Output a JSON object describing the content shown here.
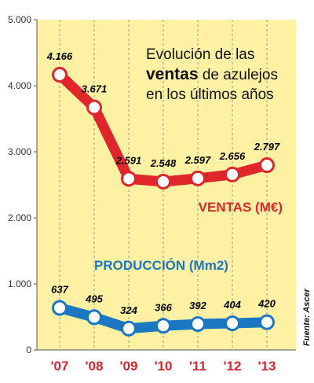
{
  "colors": {
    "background": "#fef1a4",
    "ventas": "#e0262b",
    "produccion": "#1c77c3",
    "gridline": "#9b9b9b",
    "category_labels": "#d7262e"
  },
  "title": {
    "line1": "Evolución de las",
    "line2_bold": "ventas",
    "line2_rest": " de azulejos",
    "line3": "en los últimos años"
  },
  "source": "Fuente: Ascer",
  "chart_data": {
    "type": "line",
    "categories": [
      "'07",
      "'08",
      "'09",
      "'10",
      "'11",
      "'12",
      "'13"
    ],
    "ylim": [
      0,
      5000
    ],
    "yticks": [
      0,
      1000,
      2000,
      3000,
      4000,
      5000
    ],
    "ytick_labels": [
      "0",
      "1.000",
      "2.000",
      "3.000",
      "4.000",
      "5.000"
    ],
    "grid": "vertical dashed",
    "series": [
      {
        "name": "VENTAS (M€)",
        "color": "#e0262b",
        "values": [
          4166,
          3671,
          2591,
          2548,
          2597,
          2656,
          2797
        ],
        "labels": [
          "4.166",
          "3.671",
          "2.591",
          "2.548",
          "2.597",
          "2.656",
          "2.797"
        ]
      },
      {
        "name": "PRODUCCIÓN (Mm2)",
        "color": "#1c77c3",
        "values": [
          637,
          495,
          324,
          366,
          392,
          404,
          420
        ],
        "labels": [
          "637",
          "495",
          "324",
          "366",
          "392",
          "404",
          "420"
        ]
      }
    ]
  }
}
